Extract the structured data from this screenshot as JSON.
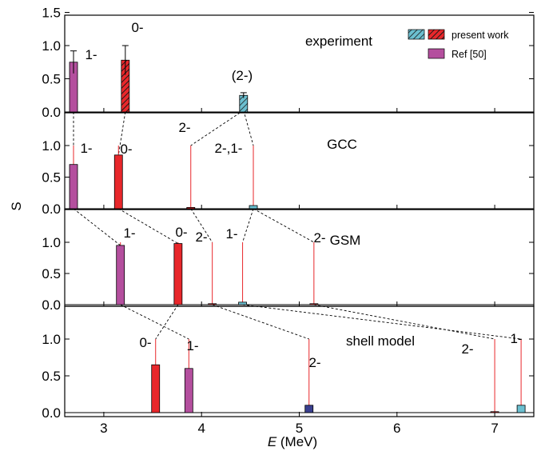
{
  "chart_data": {
    "type": "bar",
    "xlabel_italic": "E",
    "xlabel_rest": " (MeV)",
    "ylabel": "S",
    "xlim": [
      2.6,
      7.4
    ],
    "x_ticks": [
      "3",
      "4",
      "5",
      "6",
      "7"
    ],
    "x_tick_values": [
      3,
      4,
      5,
      6,
      7
    ],
    "colors": {
      "present_work": "#e8272b",
      "present_work_hatch_cyan": "#6bbfd0",
      "ref50": "#b44f9e",
      "shell_blue": "#3a3f8f",
      "connector": "#000000"
    },
    "legend": {
      "entries": [
        {
          "label": "present work"
        },
        {
          "label": "Ref [50]"
        }
      ]
    },
    "panels": [
      {
        "name": "experiment",
        "label": "experiment",
        "ylim": [
          0,
          1.5
        ],
        "y_ticks": [
          "0.0",
          "0.5",
          "1.0",
          "1.5"
        ],
        "y_tick_values": [
          0,
          0.5,
          1.0,
          1.5
        ],
        "bars": [
          {
            "x": 2.69,
            "value": 0.75,
            "error": 0.17,
            "style": "ref50",
            "label": "1-"
          },
          {
            "x": 3.22,
            "value": 0.78,
            "error": 0.22,
            "style": "hatch-red",
            "label": "0-"
          },
          {
            "x": 4.43,
            "value": 0.25,
            "error": 0.04,
            "style": "hatch-cyan",
            "label": "(2-)"
          }
        ]
      },
      {
        "name": "gcc",
        "label": "GCC",
        "ylim": [
          0,
          1.45
        ],
        "y_ticks": [
          "0.0",
          "0.5",
          "1.0"
        ],
        "y_tick_values": [
          0,
          0.5,
          1.0
        ],
        "bars": [
          {
            "x": 2.69,
            "value": 0.7,
            "style": "ref50",
            "label": "1-"
          },
          {
            "x": 3.15,
            "value": 0.85,
            "style": "red",
            "label": "0-"
          },
          {
            "x": 3.89,
            "value": 0.02,
            "style": "red",
            "label": "2-"
          },
          {
            "x": 4.53,
            "value": 0.05,
            "style": "cyan",
            "label": "2-,1-"
          }
        ]
      },
      {
        "name": "gsm",
        "label": "GSM",
        "ylim": [
          0,
          1.45
        ],
        "y_ticks": [
          "0.0",
          "0.5",
          "1.0"
        ],
        "y_tick_values": [
          0,
          0.5,
          1.0
        ],
        "bars": [
          {
            "x": 3.17,
            "value": 0.95,
            "style": "ref50",
            "label": "1-"
          },
          {
            "x": 3.76,
            "value": 0.98,
            "style": "red",
            "label": "0-"
          },
          {
            "x": 4.11,
            "value": 0.0,
            "style": "red",
            "label": "2-"
          },
          {
            "x": 4.42,
            "value": 0.04,
            "style": "cyan",
            "label": "1-"
          },
          {
            "x": 5.15,
            "value": 0.0,
            "style": "red",
            "label": "2-"
          }
        ]
      },
      {
        "name": "shell",
        "label": "shell model",
        "ylim": [
          0,
          1.45
        ],
        "y_ticks": [
          "0.0",
          "0.5",
          "1.0"
        ],
        "y_tick_values": [
          0,
          0.5,
          1.0
        ],
        "bars": [
          {
            "x": 3.53,
            "value": 0.65,
            "style": "red",
            "label": "0-"
          },
          {
            "x": 3.87,
            "value": 0.6,
            "style": "ref50",
            "label": "1-"
          },
          {
            "x": 5.1,
            "value": 0.1,
            "style": "blue",
            "label": "2-"
          },
          {
            "x": 7.0,
            "value": 0.0,
            "style": "red",
            "label": "2-"
          },
          {
            "x": 7.27,
            "value": 0.1,
            "style": "cyan",
            "label": "1-"
          }
        ]
      }
    ]
  }
}
